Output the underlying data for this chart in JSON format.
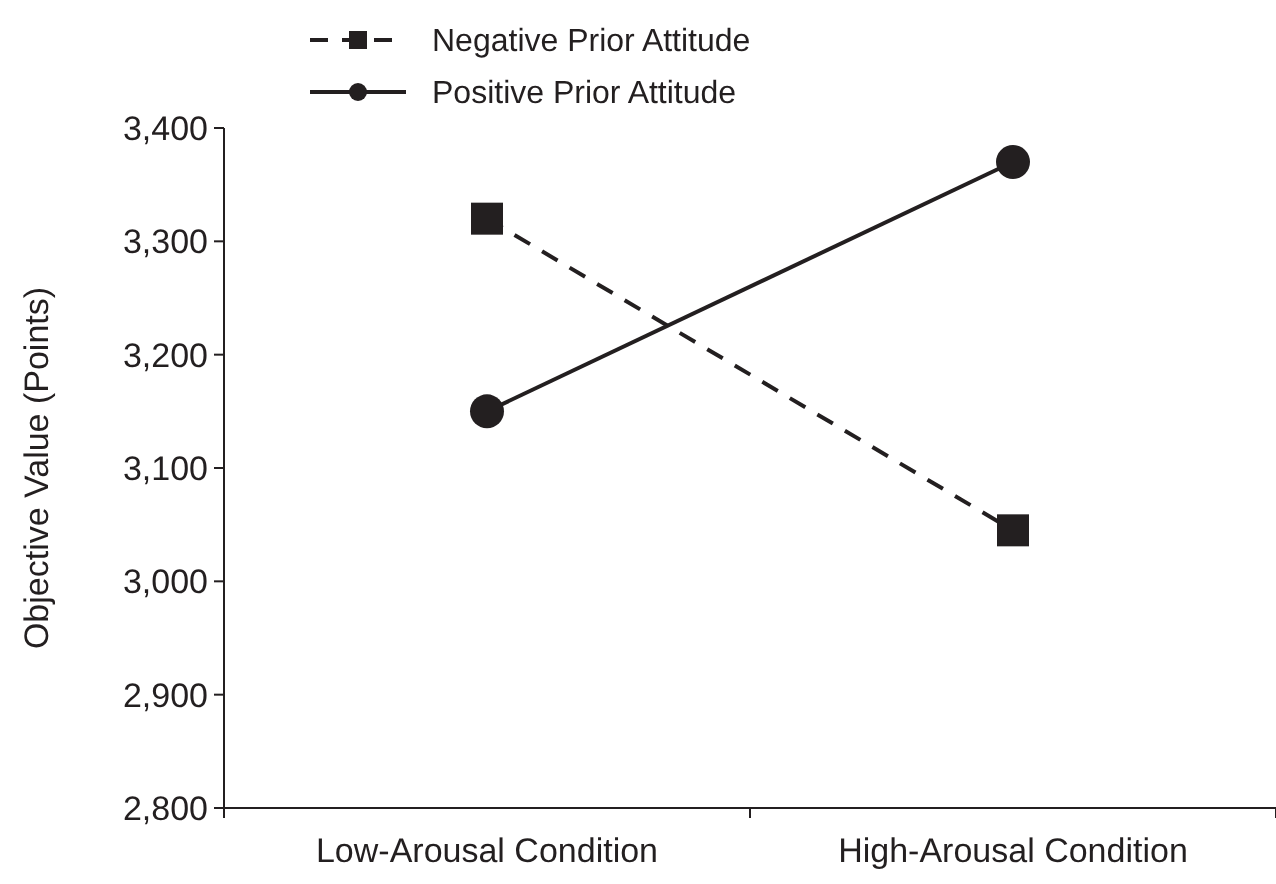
{
  "chart_data": {
    "type": "line",
    "ylabel": "Objective Value (Points)",
    "categories": [
      "Low-Arousal Condition",
      "High-Arousal Condition"
    ],
    "series": [
      {
        "name": "Negative Prior Attitude",
        "color": "#231f20",
        "values": [
          3320,
          3045
        ],
        "marker": "square",
        "line_style": "dashed"
      },
      {
        "name": "Positive Prior Attitude",
        "color": "#231f20",
        "values": [
          3150,
          3370
        ],
        "marker": "circle",
        "line_style": "solid"
      }
    ],
    "ylim": [
      2800,
      3400
    ],
    "yticks": [
      {
        "value": 2800,
        "label": "2,800"
      },
      {
        "value": 2900,
        "label": "2,900"
      },
      {
        "value": 3000,
        "label": "3,000"
      },
      {
        "value": 3100,
        "label": "3,100"
      },
      {
        "value": 3200,
        "label": "3,200"
      },
      {
        "value": 3300,
        "label": "3,300"
      },
      {
        "value": 3400,
        "label": "3,400"
      }
    ],
    "grid": false,
    "legend": "top"
  }
}
